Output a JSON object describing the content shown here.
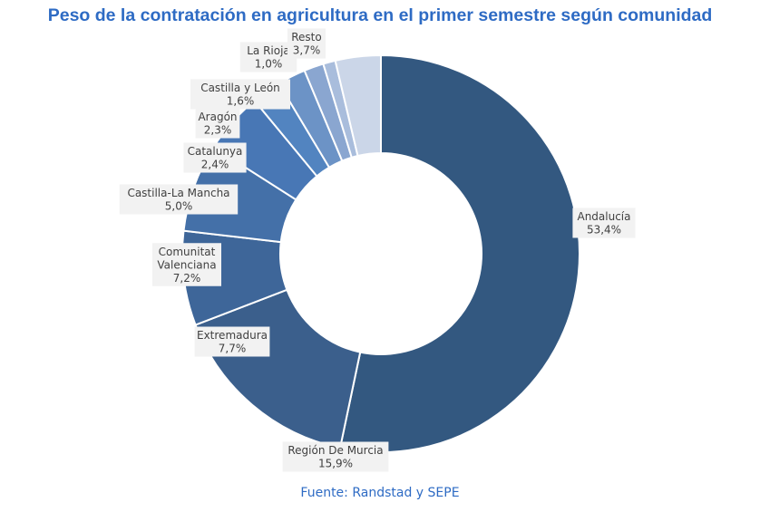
{
  "chart_data": {
    "type": "pie",
    "title": "Peso de la contratación en agricultura en el primer semestre según comunidad",
    "source": "Fuente: Randstad y SEPE",
    "donut": true,
    "slices": [
      {
        "name": "Andalucía",
        "value": 53.4,
        "label_value": "53,4%",
        "color": "#335880"
      },
      {
        "name": "Región De Murcia",
        "value": 15.9,
        "label_value": "15,9%",
        "color": "#3b5f8c"
      },
      {
        "name": "Extremadura",
        "value": 7.7,
        "label_value": "7,7%",
        "color": "#3e6699"
      },
      {
        "name": "Comunitat Valenciana",
        "value": 7.2,
        "label_value": "7,2%",
        "color": "#4470a8"
      },
      {
        "name": "Castilla-La Mancha",
        "value": 5.0,
        "label_value": "5,0%",
        "color": "#4877b5"
      },
      {
        "name": "Catalunya",
        "value": 2.4,
        "label_value": "2,4%",
        "color": "#5284c0"
      },
      {
        "name": "Aragón",
        "value": 2.3,
        "label_value": "2,3%",
        "color": "#6c93c6"
      },
      {
        "name": "Castilla y León",
        "value": 1.6,
        "label_value": "1,6%",
        "color": "#8aa6d0"
      },
      {
        "name": "La Rioja",
        "value": 1.0,
        "label_value": "1,0%",
        "color": "#a9bddc"
      },
      {
        "name": "Resto",
        "value": 3.7,
        "label_value": "3,7%",
        "color": "#cbd6e8"
      }
    ]
  },
  "colors": {
    "title": "#2e6bc4",
    "source": "#2e6bc4",
    "separator": "#ffffff"
  }
}
